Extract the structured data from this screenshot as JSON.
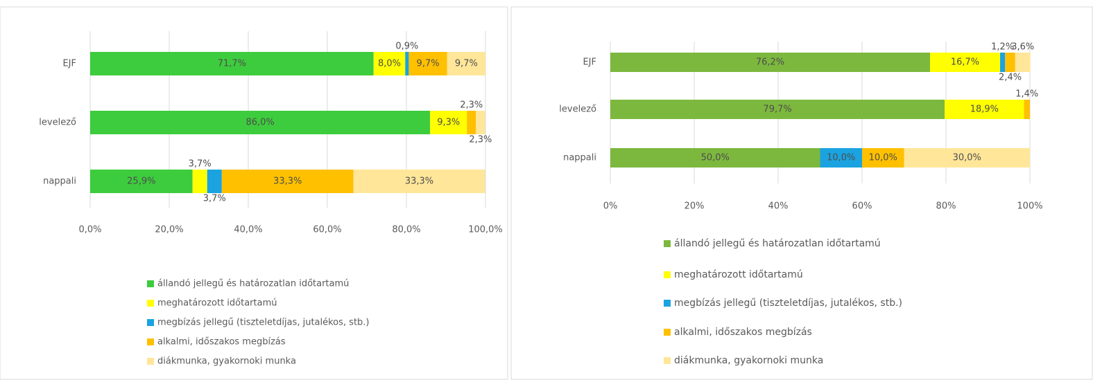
{
  "chart_data": [
    {
      "type": "bar",
      "orientation": "horizontal",
      "stacked": true,
      "categories": [
        "EJF",
        "levelező",
        "nappali"
      ],
      "series": [
        {
          "name": "állandó jellegű és határozatlan időtartamú",
          "color": "#3dcc3d",
          "values": [
            71.7,
            86.0,
            25.9
          ],
          "value_labels": [
            "71,7%",
            "86,0%",
            "25,9%"
          ]
        },
        {
          "name": "meghatározott időtartamú",
          "color": "#ffff00",
          "values": [
            8.0,
            9.3,
            3.7
          ],
          "value_labels": [
            "8,0%",
            "9,3%",
            "3,7%"
          ]
        },
        {
          "name": "megbízás jellegű (tiszteletdíjas, jutalékos, stb.)",
          "color": "#1aa3e0",
          "values": [
            0.9,
            null,
            3.7
          ],
          "value_labels": [
            "0,9%",
            null,
            "3,7%"
          ]
        },
        {
          "name": "alkalmi, időszakos megbízás",
          "color": "#ffc000",
          "values": [
            9.7,
            2.3,
            33.3
          ],
          "value_labels": [
            "9,7%",
            "2,3%",
            "33,3%"
          ]
        },
        {
          "name": "diákmunka, gyakornoki munka",
          "color": "#ffe699",
          "values": [
            9.7,
            2.3,
            33.3
          ],
          "value_labels": [
            "9,7%",
            "2,3%",
            "33,3%"
          ]
        }
      ],
      "xlim": [
        0,
        100
      ],
      "xticks": [
        {
          "value": 0,
          "label": "0,0%"
        },
        {
          "value": 20,
          "label": "20,0%"
        },
        {
          "value": 40,
          "label": "40,0%"
        },
        {
          "value": 60,
          "label": "60,0%"
        },
        {
          "value": 80,
          "label": "80,0%"
        },
        {
          "value": 100,
          "label": "100,0%"
        }
      ],
      "grid": true,
      "legend": "bottom"
    },
    {
      "type": "bar",
      "orientation": "horizontal",
      "stacked": true,
      "categories": [
        "EJF",
        "levelező",
        "nappali"
      ],
      "series": [
        {
          "name": "állandó jellegű és határozatlan időtartamú",
          "color": "#7cb83e",
          "values": [
            76.2,
            79.7,
            50.0
          ],
          "value_labels": [
            "76,2%",
            "79,7%",
            "50,0%"
          ]
        },
        {
          "name": "meghatározott időtartamú",
          "color": "#ffff00",
          "values": [
            16.7,
            18.9,
            null
          ],
          "value_labels": [
            "16,7%",
            "18,9%",
            null
          ]
        },
        {
          "name": "megbízás jellegű (tiszteletdíjas, jutalékos, stb.)",
          "color": "#1aa3e0",
          "values": [
            1.2,
            null,
            10.0
          ],
          "value_labels": [
            "1,2%",
            null,
            "10,0%"
          ]
        },
        {
          "name": "alkalmi, időszakos megbízás",
          "color": "#ffc000",
          "values": [
            2.4,
            1.4,
            10.0
          ],
          "value_labels": [
            "2,4%",
            "1,4%",
            "10,0%"
          ]
        },
        {
          "name": "diákmunka, gyakornoki munka",
          "color": "#ffe699",
          "values": [
            3.6,
            null,
            30.0
          ],
          "value_labels": [
            "3,6%",
            null,
            "30,0%"
          ]
        }
      ],
      "xlim": [
        0,
        100
      ],
      "xticks": [
        {
          "value": 0,
          "label": "0%"
        },
        {
          "value": 20,
          "label": "20%"
        },
        {
          "value": 40,
          "label": "40%"
        },
        {
          "value": 60,
          "label": "60%"
        },
        {
          "value": 80,
          "label": "80%"
        },
        {
          "value": 100,
          "label": "100%"
        }
      ],
      "grid": true,
      "legend": "bottom"
    }
  ]
}
